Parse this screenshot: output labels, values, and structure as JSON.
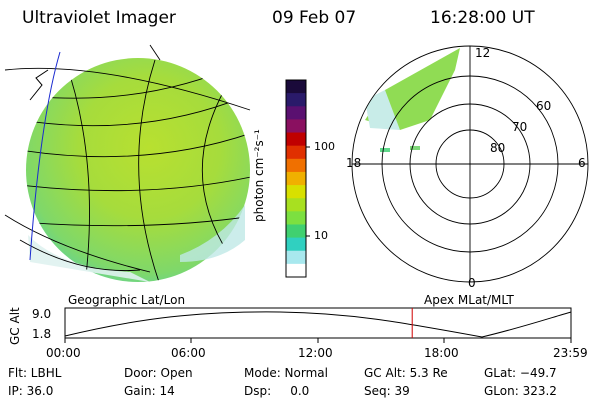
{
  "header": {
    "instrument": "Ultraviolet Imager",
    "date": "09 Feb 07",
    "time": "16:28:00 UT"
  },
  "colorbar": {
    "unit_label": "photon cm⁻²s⁻¹",
    "tick_labels": [
      "100",
      "10"
    ],
    "colors": [
      "#1a0a3a",
      "#2a1a6a",
      "#5a1070",
      "#8a1060",
      "#c00000",
      "#e03000",
      "#f07000",
      "#f0b000",
      "#d8e000",
      "#a8e020",
      "#7ce040",
      "#40d070",
      "#30d0c0",
      "#a8e8ee",
      "#ffffff"
    ]
  },
  "polar": {
    "mlt_labels": {
      "top": "12",
      "left": "18",
      "right": "6",
      "bottom": "0"
    },
    "lat_labels": [
      "60",
      "70",
      "80"
    ]
  },
  "panel_labels": {
    "left": "Geographic Lat/Lon",
    "right": "Apex MLat/MLT"
  },
  "alt_plot": {
    "ylabel": "GC Alt",
    "y_ticks": [
      "9.0",
      "1.8"
    ],
    "x_ticks": [
      "00:00",
      "06:00",
      "12:00",
      "18:00",
      "23:59"
    ],
    "current_time_hours": 16.47,
    "marker_color": "#d00000"
  },
  "status": {
    "flt": "Flt: LBHL",
    "ip": "IP: 36.0",
    "door": "Door: Open",
    "gain": "Gain: 14",
    "mode": "Mode: Normal",
    "dsp": "Dsp:     0.0",
    "gcalt": "GC Alt: 5.3 Re",
    "seq": "Seq: 39",
    "glat": "GLat: −49.7",
    "glon": "GLon: 323.2"
  }
}
